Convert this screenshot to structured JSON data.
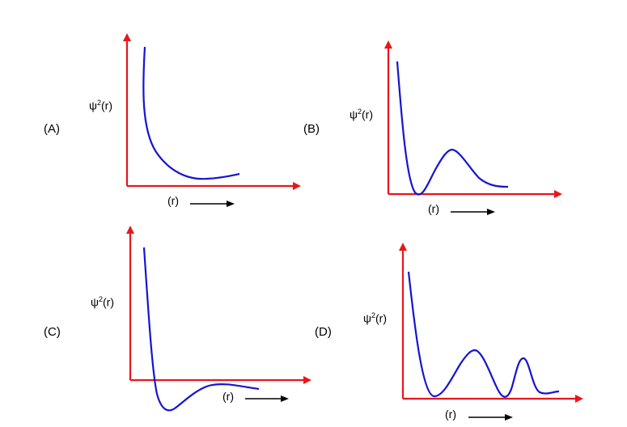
{
  "panels": [
    {
      "id": "A",
      "tag": "(A)",
      "y_symbol": "ψ",
      "y_power": "2",
      "y_arg": "(r)",
      "x_label": "(r)",
      "axis_color": "#e8161b",
      "curve_color": "#1414d2"
    },
    {
      "id": "B",
      "tag": "(B)",
      "y_symbol": "ψ",
      "y_power": "2",
      "y_arg": "(r)",
      "x_label": "(r)",
      "axis_color": "#e8161b",
      "curve_color": "#1414d2"
    },
    {
      "id": "C",
      "tag": "(C)",
      "y_symbol": "ψ",
      "y_power": "2",
      "y_arg": "(r)",
      "x_label": "(r)",
      "axis_color": "#e8161b",
      "curve_color": "#1414d2"
    },
    {
      "id": "D",
      "tag": "(D)",
      "y_symbol": "ψ",
      "y_power": "2",
      "y_arg": "(r)",
      "x_label": "(r)",
      "axis_color": "#e8161b",
      "curve_color": "#1414d2"
    }
  ]
}
